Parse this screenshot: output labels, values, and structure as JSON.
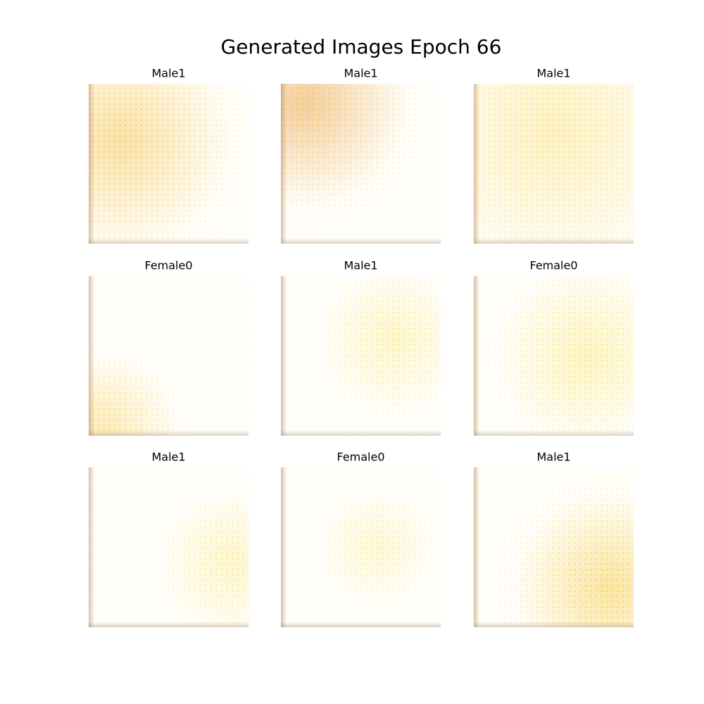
{
  "title": "Generated Images Epoch 66",
  "panels": [
    "Male1",
    "Male1",
    "Male1",
    "Female0",
    "Male1",
    "Female0",
    "Male1",
    "Female0",
    "Male1"
  ]
}
